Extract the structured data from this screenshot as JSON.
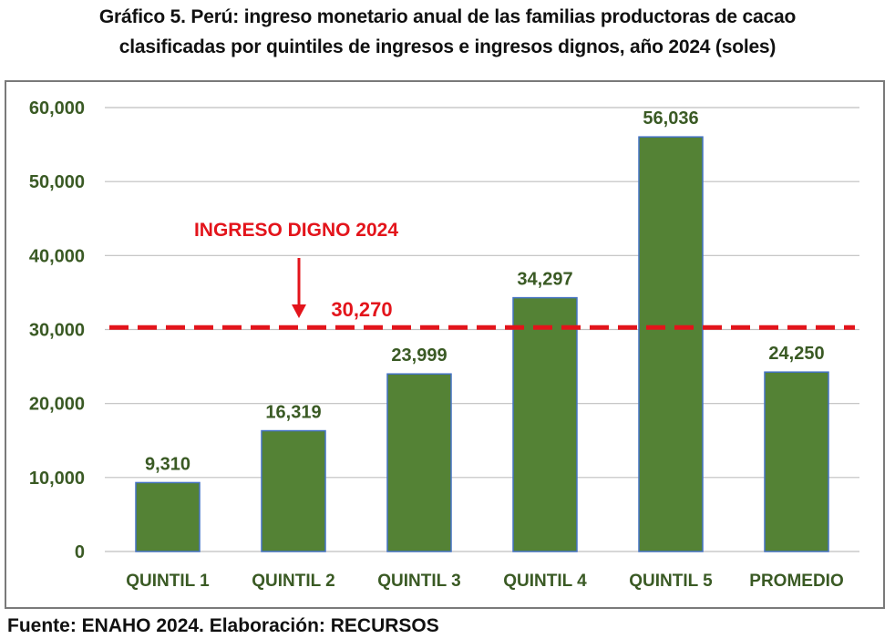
{
  "title_line1": "Gráfico 5. Perú: ingreso monetario anual de las familias productoras de cacao",
  "title_line2": "clasificadas por quintiles de ingresos e ingresos dignos, año 2024 (soles)",
  "source": "Fuente: ENAHO 2024. Elaboración: RECURSOS",
  "colors": {
    "bar_fill": "#548235",
    "bar_edge": "#4472c4",
    "label_text": "#3a5a24",
    "reference": "#e3141b",
    "grid": "#bfbfbf",
    "frame": "#7a7a7a"
  },
  "chart_data": {
    "type": "bar",
    "title": "Gráfico 5. Perú: ingreso monetario anual de las familias productoras de cacao clasificadas por quintiles de ingresos e ingresos dignos, año 2024 (soles)",
    "xlabel": "",
    "ylabel": "",
    "categories": [
      "QUINTIL 1",
      "QUINTIL 2",
      "QUINTIL 3",
      "QUINTIL 4",
      "QUINTIL 5",
      "PROMEDIO"
    ],
    "values": [
      9310,
      16319,
      23999,
      34297,
      56036,
      24250
    ],
    "data_labels": [
      "9,310",
      "16,319",
      "23,999",
      "34,297",
      "56,036",
      "24,250"
    ],
    "ylim": [
      0,
      60000
    ],
    "yticks": [
      0,
      10000,
      20000,
      30000,
      40000,
      50000,
      60000
    ],
    "ytick_labels": [
      "0",
      "10,000",
      "20,000",
      "30,000",
      "40,000",
      "50,000",
      "60,000"
    ],
    "grid": true,
    "legend": "none",
    "reference_line": {
      "value": 30270,
      "label": "INGRESO DIGNO 2024",
      "value_label": "30,270",
      "style": "dashed"
    }
  }
}
